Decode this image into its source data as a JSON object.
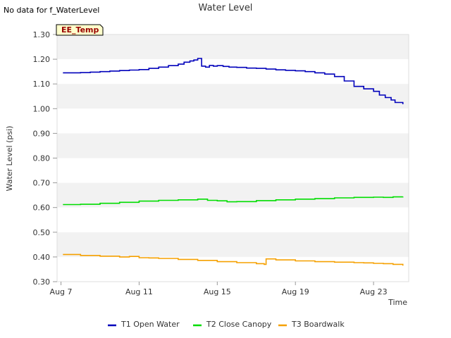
{
  "no_data_label": "No data for f_WaterLevel",
  "badge_label": "EE_Temp",
  "chart_data": {
    "type": "line",
    "title": "Water Level",
    "xlabel": "Time",
    "ylabel": "Water Level (psi)",
    "ylim": [
      0.3,
      1.3
    ],
    "yticks": [
      "0.30",
      "0.40",
      "0.50",
      "0.60",
      "0.70",
      "0.80",
      "0.90",
      "1.00",
      "1.10",
      "1.20",
      "1.30"
    ],
    "xlim": [
      6.8,
      24.8
    ],
    "xticks": [
      {
        "label": "Aug 7",
        "value": 7
      },
      {
        "label": "Aug 11",
        "value": 11
      },
      {
        "label": "Aug 15",
        "value": 15
      },
      {
        "label": "Aug 19",
        "value": 19
      },
      {
        "label": "Aug 23",
        "value": 23
      }
    ],
    "grid": "alternating horizontal bands",
    "legend_position": "bottom",
    "series": [
      {
        "name": "T1 Open Water",
        "color": "#0000bb",
        "x": [
          7.1,
          7.5,
          8.0,
          8.5,
          9.0,
          9.5,
          10.0,
          10.5,
          11.0,
          11.5,
          12.0,
          12.5,
          13.0,
          13.3,
          13.6,
          13.8,
          14.0,
          14.2,
          14.4,
          14.6,
          14.8,
          15.0,
          15.3,
          15.6,
          16.0,
          16.5,
          17.0,
          17.5,
          18.0,
          18.5,
          19.0,
          19.5,
          20.0,
          20.5,
          21.0,
          21.5,
          22.0,
          22.5,
          23.0,
          23.3,
          23.6,
          23.9,
          24.1,
          24.5
        ],
        "values": [
          1.145,
          1.145,
          1.146,
          1.148,
          1.15,
          1.152,
          1.154,
          1.156,
          1.158,
          1.163,
          1.168,
          1.174,
          1.18,
          1.188,
          1.193,
          1.197,
          1.203,
          1.172,
          1.168,
          1.175,
          1.172,
          1.174,
          1.171,
          1.168,
          1.167,
          1.164,
          1.163,
          1.16,
          1.157,
          1.155,
          1.153,
          1.15,
          1.145,
          1.14,
          1.13,
          1.112,
          1.09,
          1.08,
          1.07,
          1.055,
          1.045,
          1.035,
          1.025,
          1.018
        ]
      },
      {
        "name": "T2 Close Canopy",
        "color": "#00dd00",
        "x": [
          7.1,
          8.0,
          9.0,
          10.0,
          11.0,
          12.0,
          13.0,
          14.0,
          14.5,
          15.0,
          15.5,
          16.0,
          17.0,
          18.0,
          19.0,
          20.0,
          21.0,
          22.0,
          23.0,
          23.5,
          24.0,
          24.5
        ],
        "values": [
          0.612,
          0.613,
          0.617,
          0.621,
          0.626,
          0.629,
          0.631,
          0.634,
          0.629,
          0.627,
          0.623,
          0.624,
          0.628,
          0.631,
          0.634,
          0.636,
          0.639,
          0.641,
          0.642,
          0.641,
          0.643,
          0.644
        ]
      },
      {
        "name": "T3 Boardwalk",
        "color": "#f5a000",
        "x": [
          7.1,
          7.5,
          8.0,
          9.0,
          10.0,
          10.5,
          11.0,
          11.5,
          12.0,
          13.0,
          14.0,
          15.0,
          16.0,
          17.0,
          17.4,
          17.5,
          18.0,
          19.0,
          20.0,
          21.0,
          22.0,
          22.5,
          23.0,
          23.5,
          24.0,
          24.5
        ],
        "values": [
          0.41,
          0.41,
          0.406,
          0.403,
          0.4,
          0.402,
          0.397,
          0.396,
          0.394,
          0.39,
          0.386,
          0.381,
          0.377,
          0.373,
          0.37,
          0.392,
          0.388,
          0.384,
          0.381,
          0.379,
          0.377,
          0.376,
          0.374,
          0.373,
          0.37,
          0.365
        ]
      }
    ]
  }
}
